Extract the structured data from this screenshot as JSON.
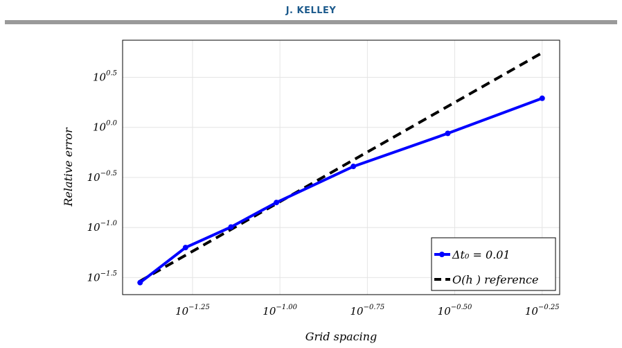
{
  "header": {
    "title": "J. KELLEY"
  },
  "chart_data": {
    "type": "line",
    "xlabel": "Grid spacing",
    "ylabel": "Relative error",
    "log_scale": {
      "x": true,
      "y": true
    },
    "xlim_log10": [
      -1.45,
      -0.2
    ],
    "ylim_log10": [
      -1.67,
      0.87
    ],
    "x_ticks": [
      {
        "value": -1.25,
        "base": "10",
        "exp": "−1.25"
      },
      {
        "value": -1.0,
        "base": "10",
        "exp": "−1.00"
      },
      {
        "value": -0.75,
        "base": "10",
        "exp": "−0.75"
      },
      {
        "value": -0.5,
        "base": "10",
        "exp": "−0.50"
      },
      {
        "value": -0.25,
        "base": "10",
        "exp": "−0.25"
      }
    ],
    "y_ticks": [
      {
        "value": -1.5,
        "base": "10",
        "exp": "−1.5"
      },
      {
        "value": -1.0,
        "base": "10",
        "exp": "−1.0"
      },
      {
        "value": -0.5,
        "base": "10",
        "exp": "−0.5"
      },
      {
        "value": 0.0,
        "base": "10",
        "exp": "0.0"
      },
      {
        "value": 0.5,
        "base": "10",
        "exp": "0.5"
      }
    ],
    "grid": true,
    "legend_position": "bottom-right",
    "series": [
      {
        "name": "Δt₀ = 0.01",
        "legend_label": "Δt₀ = 0.01",
        "color": "#0000ff",
        "style": "solid-markers",
        "x_log10": [
          -1.4,
          -1.27,
          -1.14,
          -1.01,
          -0.79,
          -0.52,
          -0.25
        ],
        "y_log10": [
          -1.55,
          -1.2,
          -0.995,
          -0.75,
          -0.39,
          -0.06,
          0.29
        ]
      },
      {
        "name": "O(h ) reference",
        "legend_label": "O(h ) reference",
        "color": "#000000",
        "style": "dashed",
        "x_log10": [
          -1.4,
          -0.25
        ],
        "y_log10": [
          -1.535,
          0.745
        ]
      }
    ]
  }
}
